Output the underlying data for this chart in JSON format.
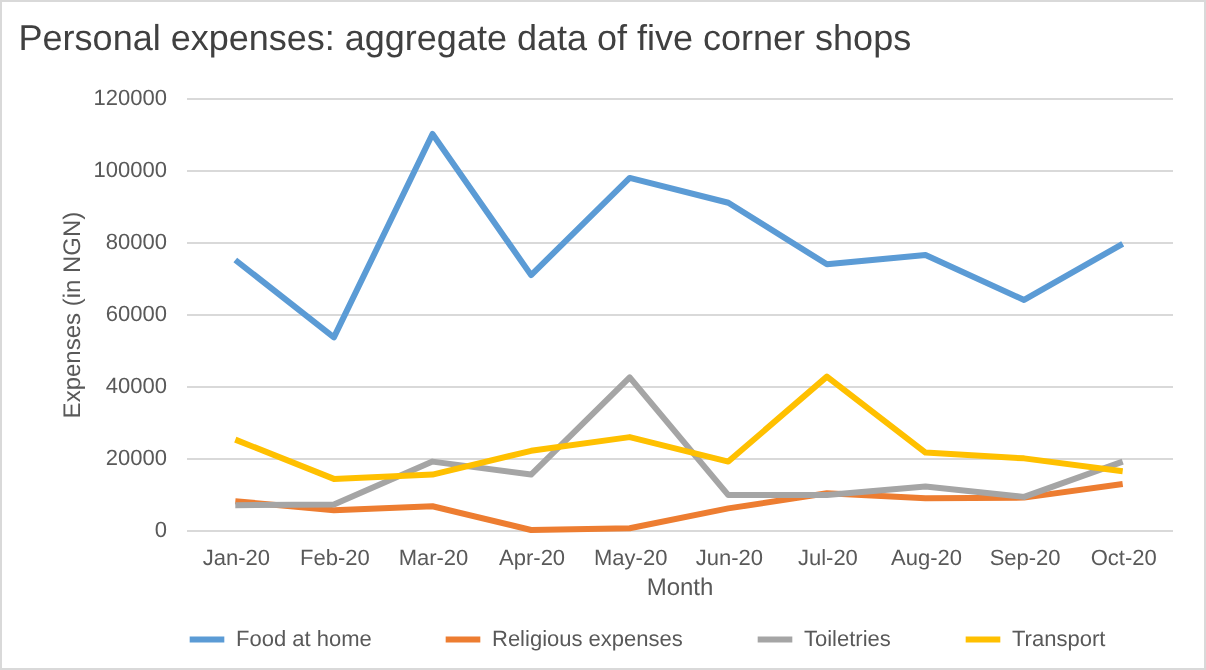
{
  "chart_data": {
    "type": "line",
    "title": "Personal expenses: aggregate data of five corner shops",
    "xlabel": "Month",
    "ylabel": "Expenses (in NGN)",
    "categories": [
      "Jan-20",
      "Feb-20",
      "Mar-20",
      "Apr-20",
      "May-20",
      "Jun-20",
      "Jul-20",
      "Aug-20",
      "Sep-20",
      "Oct-20"
    ],
    "series": [
      {
        "name": "Food at home",
        "color": "#5b9bd5",
        "values": [
          75000,
          53500,
          110000,
          70800,
          97800,
          90900,
          73800,
          76400,
          63900,
          79500
        ]
      },
      {
        "name": "Religious expenses",
        "color": "#ed7d31",
        "values": [
          8000,
          5500,
          6600,
          0,
          500,
          6000,
          10200,
          8800,
          9000,
          12800
        ]
      },
      {
        "name": "Toiletries",
        "color": "#a5a5a5",
        "values": [
          6900,
          7100,
          19000,
          15400,
          42400,
          9700,
          9700,
          12100,
          9200,
          19000
        ]
      },
      {
        "name": "Transport",
        "color": "#ffc000",
        "values": [
          25100,
          14200,
          15400,
          22000,
          25800,
          19000,
          42600,
          21500,
          19900,
          16300
        ]
      }
    ],
    "ylim": [
      0,
      120000
    ],
    "yticks": [
      0,
      20000,
      40000,
      60000,
      80000,
      100000,
      120000
    ],
    "grid": "y",
    "legend": "bottom",
    "marker": "none",
    "line_style": "solid"
  }
}
